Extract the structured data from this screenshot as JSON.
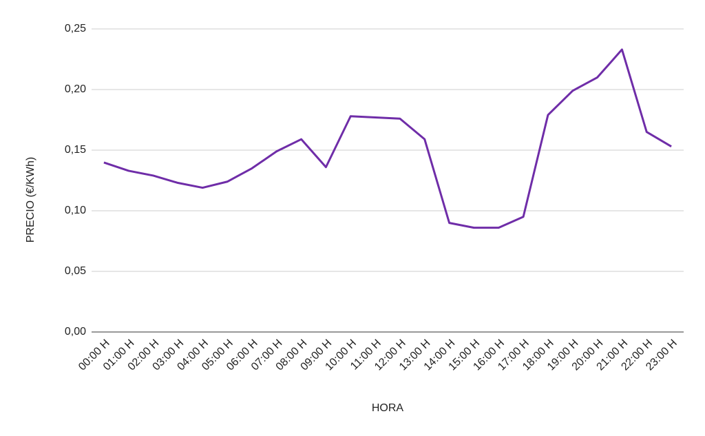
{
  "chart_data": {
    "type": "line",
    "x_label": "HORA",
    "y_label": "PRECIO (€/KWh)",
    "categories": [
      "00:00 H",
      "01:00 H",
      "02:00 H",
      "03:00 H",
      "04:00 H",
      "05:00 H",
      "06:00 H",
      "07:00 H",
      "08:00 H",
      "09:00 H",
      "10:00 H",
      "11:00 H",
      "12:00 H",
      "13:00 H",
      "14:00 H",
      "15:00 H",
      "16:00 H",
      "17:00 H",
      "18:00 H",
      "19:00 H",
      "20:00 H",
      "21:00 H",
      "22:00 H",
      "23:00 H"
    ],
    "values": [
      0.1398,
      0.133,
      0.129,
      0.123,
      0.119,
      0.124,
      0.135,
      0.149,
      0.159,
      0.136,
      0.178,
      0.177,
      0.176,
      0.159,
      0.09,
      0.086,
      0.086,
      0.095,
      0.179,
      0.199,
      0.21,
      0.233,
      0.165,
      0.153
    ],
    "color": "#6f2da8",
    "ylim": [
      0,
      0.25
    ],
    "yticks": [
      {
        "value": 0,
        "label": "0,00"
      },
      {
        "value": 0.05,
        "label": "0,05"
      },
      {
        "value": 0.1,
        "label": "0,10"
      },
      {
        "value": 0.15,
        "label": "0,15"
      },
      {
        "value": 0.2,
        "label": "0,20"
      },
      {
        "value": 0.25,
        "label": "0,25"
      }
    ],
    "grid": true
  }
}
